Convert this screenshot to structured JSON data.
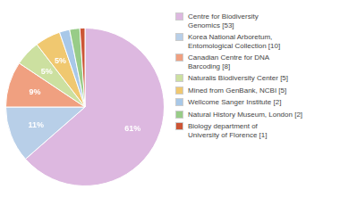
{
  "chart_data": {
    "type": "pie",
    "categories": [
      "Centre for Biodiversity\nGenomics [53]",
      "Korea National Arboretum,\nEntomological Collection [10]",
      "Canadian Centre for DNA\nBarcoding [8]",
      "Naturalis Biodiversity Center [5]",
      "Mined from GenBank, NCBI [5]",
      "Wellcome Sanger Institute [2]",
      "Natural History Museum, London [2]",
      "Biology department of\nUniversity of Florence [1]"
    ],
    "values": [
      61,
      11,
      9,
      5,
      5,
      2,
      2,
      1
    ],
    "value_labels": [
      "61%",
      "11%",
      "9%",
      "5%",
      "5%",
      null,
      null,
      null
    ],
    "colors": [
      "#ddb8e0",
      "#b8cfe8",
      "#f0a080",
      "#cce0a0",
      "#f0c870",
      "#a8c8e8",
      "#98cc88",
      "#cc5535"
    ],
    "data_labels": true,
    "legend": "right"
  }
}
